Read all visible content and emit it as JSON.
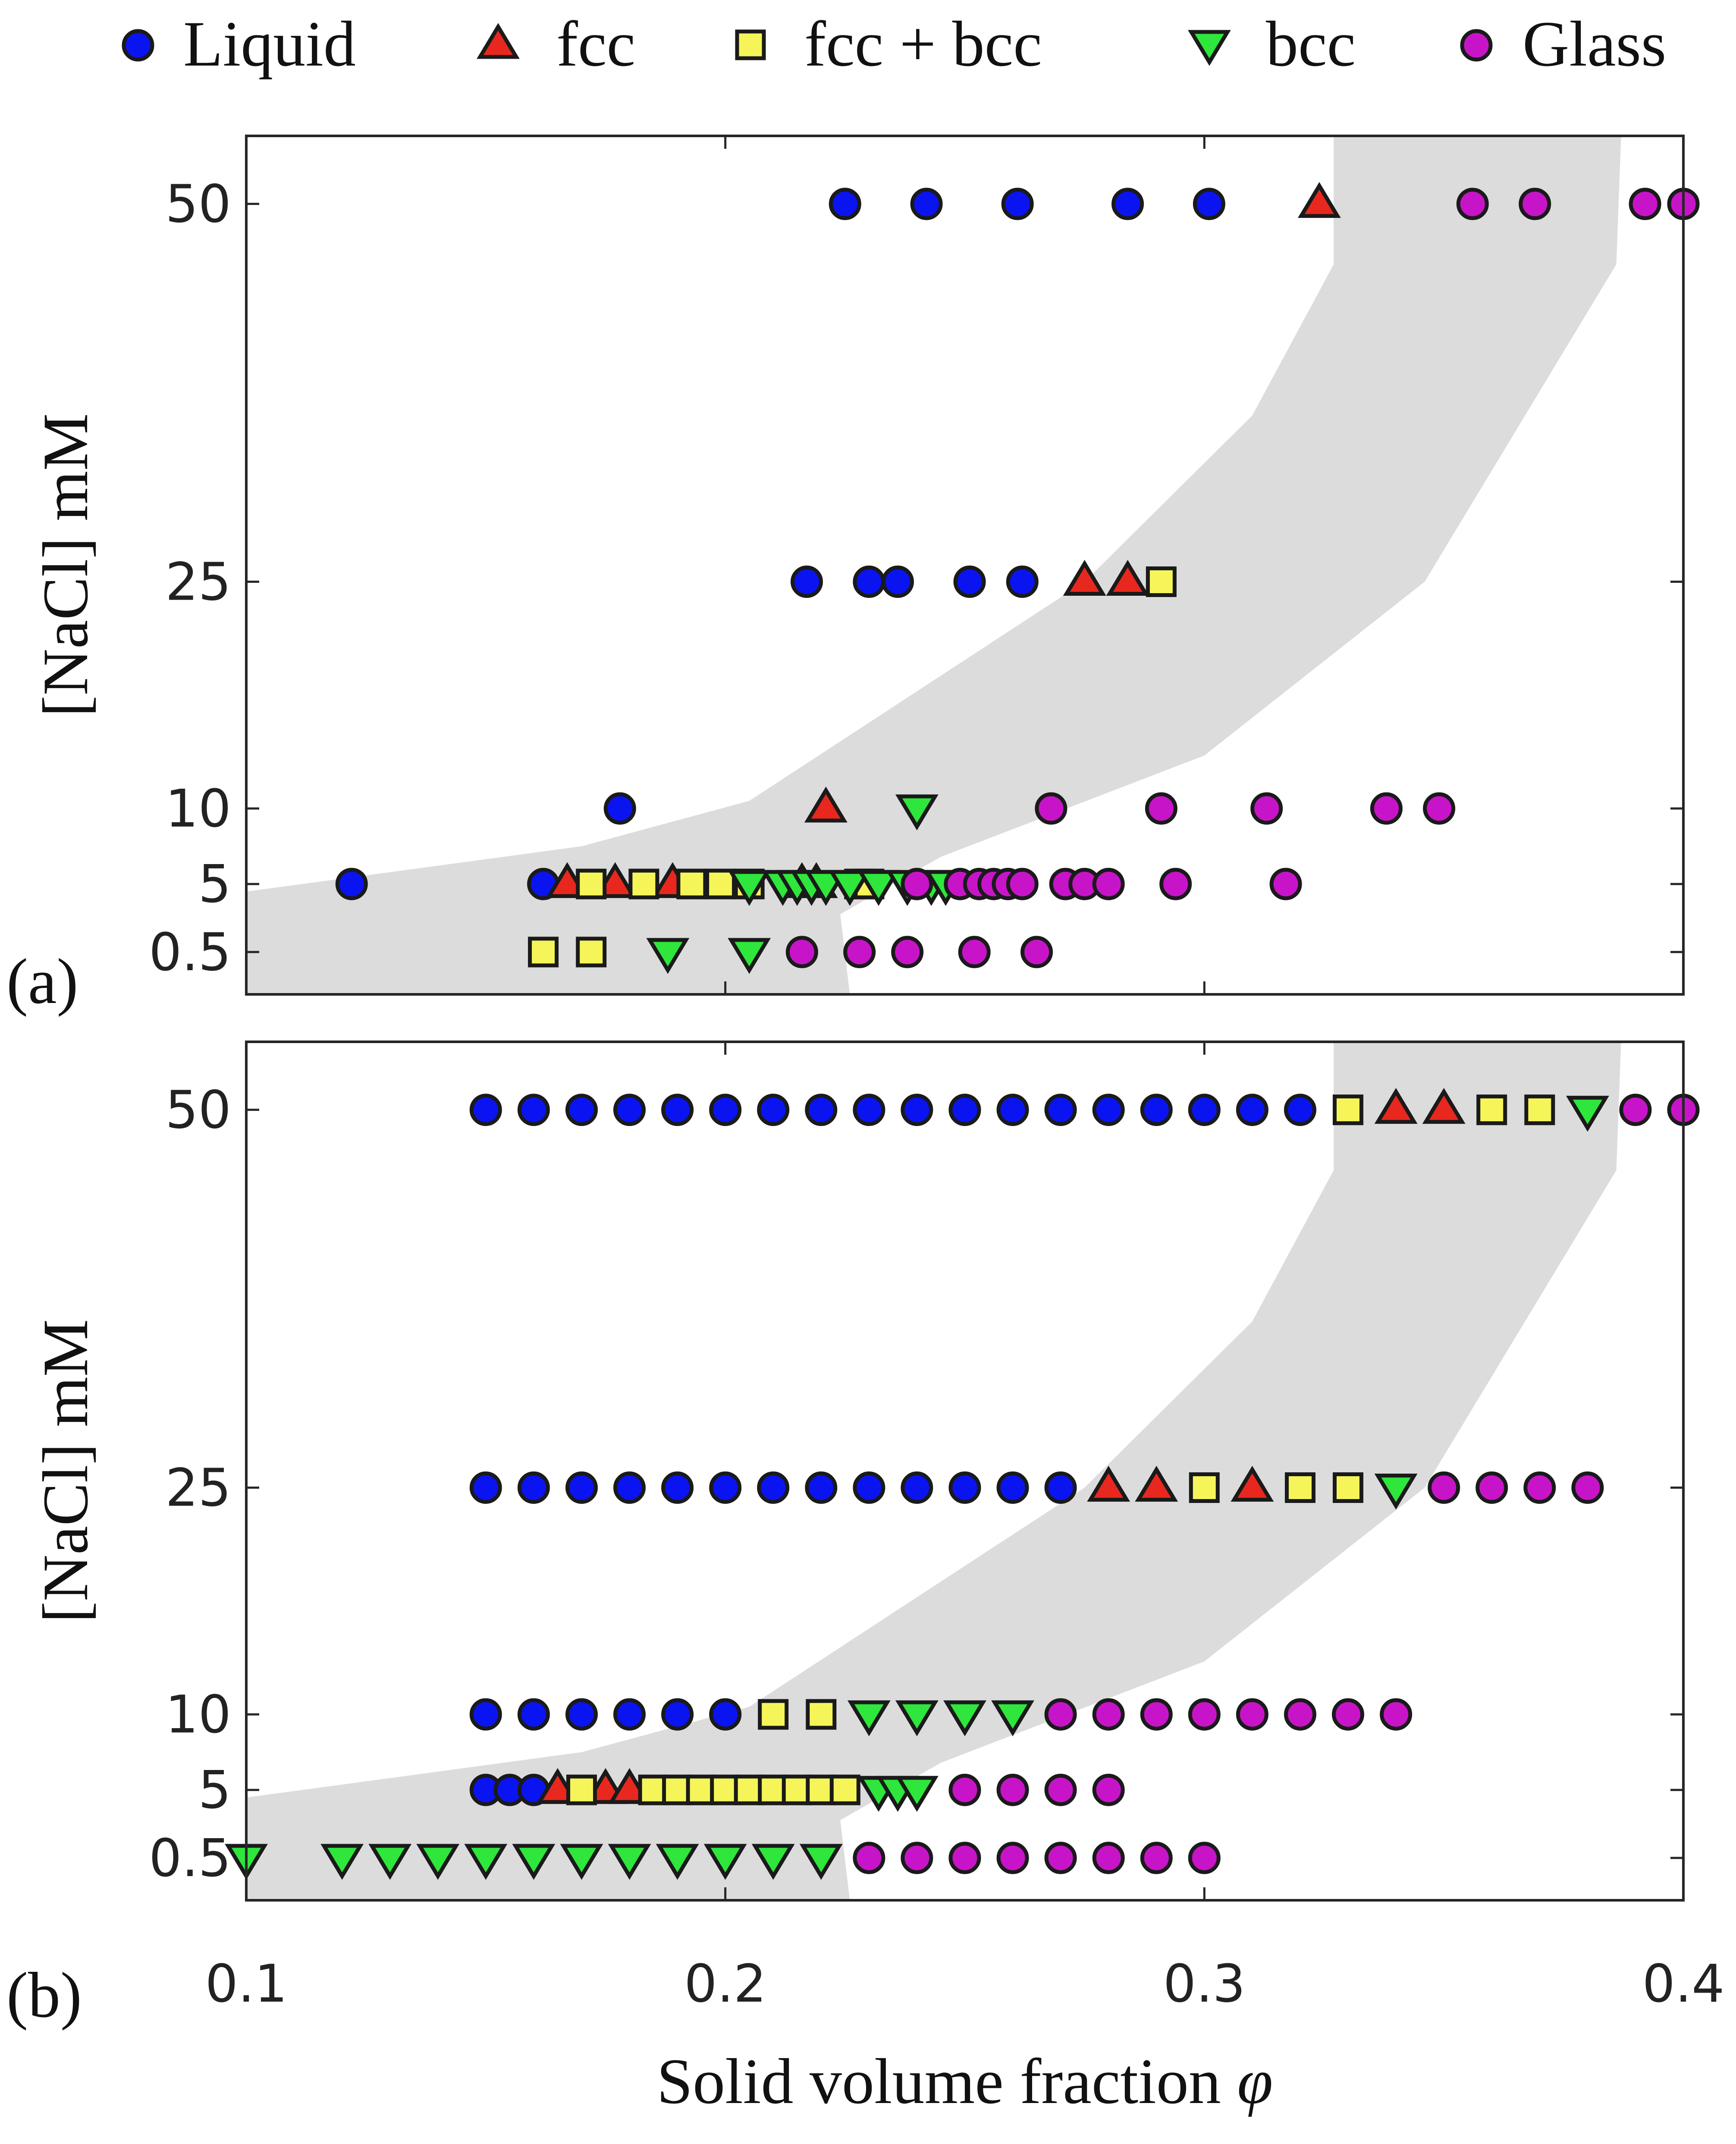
{
  "title": "",
  "legend": [
    {
      "key": "liquid",
      "label": "Liquid",
      "marker": "circle",
      "color": "#0a14f0"
    },
    {
      "key": "fcc",
      "label": "fcc",
      "marker": "triangle-up",
      "color": "#e8281e"
    },
    {
      "key": "mix",
      "label": "fcc + bcc",
      "marker": "square",
      "color": "#f5f55a"
    },
    {
      "key": "bcc",
      "label": "bcc",
      "marker": "triangle-down",
      "color": "#2ee63c"
    },
    {
      "key": "glass",
      "label": "Glass",
      "marker": "circle",
      "color": "#c814c8"
    }
  ],
  "xlabel_text": "Solid volume fraction ",
  "xlabel_symbol": "φ",
  "ylabel": "[NaCl] mM",
  "panel_a_label": "(a)",
  "panel_b_label": "(b)",
  "chart_data": [
    {
      "type": "scatter",
      "panel": "(a)",
      "xlabel": "Solid volume fraction φ",
      "ylabel": "[NaCl] mM",
      "xlim": [
        0.1,
        0.4
      ],
      "xticks": [
        0.1,
        0.2,
        0.3,
        0.4
      ],
      "xtick_labels": [
        "0.1",
        "0.2",
        "0.3",
        "0.4"
      ],
      "yticks": [
        0.5,
        5,
        10,
        25,
        50
      ],
      "ytick_labels": [
        "0.5",
        "5",
        "10",
        "25",
        "50"
      ],
      "shaded_region": [
        [
          0.1,
          -2.3
        ],
        [
          0.226,
          -2.3
        ],
        [
          0.224,
          3.0
        ],
        [
          0.245,
          6.8
        ],
        [
          0.3,
          13.5
        ],
        [
          0.346,
          25.0
        ],
        [
          0.386,
          46.0
        ],
        [
          0.387,
          54.5
        ],
        [
          0.327,
          54.5
        ],
        [
          0.327,
          46.0
        ],
        [
          0.31,
          36.0
        ],
        [
          0.275,
          25.0
        ],
        [
          0.205,
          10.5
        ],
        [
          0.17,
          7.5
        ],
        [
          0.1,
          4.5
        ]
      ],
      "series": [
        {
          "name": "Liquid",
          "points": [
            [
              0.225,
              50
            ],
            [
              0.242,
              50
            ],
            [
              0.261,
              50
            ],
            [
              0.284,
              50
            ],
            [
              0.301,
              50
            ],
            [
              0.217,
              25
            ],
            [
              0.23,
              25
            ],
            [
              0.236,
              25
            ],
            [
              0.251,
              25
            ],
            [
              0.262,
              25
            ],
            [
              0.178,
              10
            ],
            [
              0.122,
              5
            ],
            [
              0.162,
              5
            ]
          ]
        },
        {
          "name": "fcc",
          "points": [
            [
              0.324,
              50
            ],
            [
              0.275,
              25
            ],
            [
              0.284,
              25
            ],
            [
              0.221,
              10
            ],
            [
              0.167,
              5
            ],
            [
              0.177,
              5
            ],
            [
              0.189,
              5
            ],
            [
              0.216,
              5
            ],
            [
              0.219,
              5
            ]
          ]
        },
        {
          "name": "fcc + bcc",
          "points": [
            [
              0.291,
              25
            ],
            [
              0.172,
              5
            ],
            [
              0.183,
              5
            ],
            [
              0.193,
              5
            ],
            [
              0.199,
              5
            ],
            [
              0.205,
              5
            ],
            [
              0.228,
              5
            ],
            [
              0.23,
              5
            ],
            [
              0.162,
              0.5
            ],
            [
              0.172,
              0.5
            ]
          ]
        },
        {
          "name": "bcc",
          "points": [
            [
              0.24,
              10
            ],
            [
              0.205,
              5
            ],
            [
              0.212,
              5
            ],
            [
              0.215,
              5
            ],
            [
              0.218,
              5
            ],
            [
              0.221,
              5
            ],
            [
              0.226,
              5
            ],
            [
              0.232,
              5
            ],
            [
              0.238,
              5
            ],
            [
              0.243,
              5
            ],
            [
              0.246,
              5
            ],
            [
              0.188,
              0.5
            ],
            [
              0.205,
              0.5
            ]
          ]
        },
        {
          "name": "Glass",
          "points": [
            [
              0.356,
              50
            ],
            [
              0.369,
              50
            ],
            [
              0.392,
              50
            ],
            [
              0.4,
              50
            ],
            [
              0.268,
              10
            ],
            [
              0.291,
              10
            ],
            [
              0.313,
              10
            ],
            [
              0.338,
              10
            ],
            [
              0.349,
              10
            ],
            [
              0.24,
              5
            ],
            [
              0.249,
              5
            ],
            [
              0.253,
              5
            ],
            [
              0.256,
              5
            ],
            [
              0.259,
              5
            ],
            [
              0.262,
              5
            ],
            [
              0.271,
              5
            ],
            [
              0.275,
              5
            ],
            [
              0.28,
              5
            ],
            [
              0.294,
              5
            ],
            [
              0.317,
              5
            ],
            [
              0.216,
              0.5
            ],
            [
              0.228,
              0.5
            ],
            [
              0.238,
              0.5
            ],
            [
              0.252,
              0.5
            ],
            [
              0.265,
              0.5
            ]
          ]
        }
      ]
    },
    {
      "type": "scatter",
      "panel": "(b)",
      "xlabel": "Solid volume fraction φ",
      "ylabel": "[NaCl] mM",
      "xlim": [
        0.1,
        0.4
      ],
      "xticks": [
        0.1,
        0.2,
        0.3,
        0.4
      ],
      "xtick_labels": [
        "0.1",
        "0.2",
        "0.3",
        "0.4"
      ],
      "yticks": [
        0.5,
        5,
        10,
        25,
        50
      ],
      "ytick_labels": [
        "0.5",
        "5",
        "10",
        "25",
        "50"
      ],
      "shaded_region": [
        [
          0.1,
          -2.3
        ],
        [
          0.226,
          -2.3
        ],
        [
          0.224,
          3.0
        ],
        [
          0.245,
          6.8
        ],
        [
          0.3,
          13.5
        ],
        [
          0.346,
          25.0
        ],
        [
          0.386,
          46.0
        ],
        [
          0.387,
          54.5
        ],
        [
          0.327,
          54.5
        ],
        [
          0.327,
          46.0
        ],
        [
          0.31,
          36.0
        ],
        [
          0.275,
          25.0
        ],
        [
          0.205,
          10.5
        ],
        [
          0.17,
          7.5
        ],
        [
          0.1,
          4.5
        ]
      ],
      "series": [
        {
          "name": "Liquid",
          "points": [
            [
              0.15,
              50
            ],
            [
              0.16,
              50
            ],
            [
              0.17,
              50
            ],
            [
              0.18,
              50
            ],
            [
              0.19,
              50
            ],
            [
              0.2,
              50
            ],
            [
              0.21,
              50
            ],
            [
              0.22,
              50
            ],
            [
              0.23,
              50
            ],
            [
              0.24,
              50
            ],
            [
              0.25,
              50
            ],
            [
              0.26,
              50
            ],
            [
              0.27,
              50
            ],
            [
              0.28,
              50
            ],
            [
              0.29,
              50
            ],
            [
              0.3,
              50
            ],
            [
              0.31,
              50
            ],
            [
              0.32,
              50
            ],
            [
              0.15,
              25
            ],
            [
              0.16,
              25
            ],
            [
              0.17,
              25
            ],
            [
              0.18,
              25
            ],
            [
              0.19,
              25
            ],
            [
              0.2,
              25
            ],
            [
              0.21,
              25
            ],
            [
              0.22,
              25
            ],
            [
              0.23,
              25
            ],
            [
              0.24,
              25
            ],
            [
              0.25,
              25
            ],
            [
              0.26,
              25
            ],
            [
              0.27,
              25
            ],
            [
              0.15,
              10
            ],
            [
              0.16,
              10
            ],
            [
              0.17,
              10
            ],
            [
              0.18,
              10
            ],
            [
              0.19,
              10
            ],
            [
              0.2,
              10
            ],
            [
              0.15,
              5
            ],
            [
              0.155,
              5
            ],
            [
              0.16,
              5
            ]
          ]
        },
        {
          "name": "fcc",
          "points": [
            [
              0.34,
              50
            ],
            [
              0.35,
              50
            ],
            [
              0.28,
              25
            ],
            [
              0.29,
              25
            ],
            [
              0.31,
              25
            ],
            [
              0.165,
              5
            ],
            [
              0.175,
              5
            ],
            [
              0.18,
              5
            ]
          ]
        },
        {
          "name": "fcc + bcc",
          "points": [
            [
              0.33,
              50
            ],
            [
              0.36,
              50
            ],
            [
              0.37,
              50
            ],
            [
              0.3,
              25
            ],
            [
              0.32,
              25
            ],
            [
              0.33,
              25
            ],
            [
              0.21,
              10
            ],
            [
              0.22,
              10
            ],
            [
              0.17,
              5
            ],
            [
              0.185,
              5
            ],
            [
              0.19,
              5
            ],
            [
              0.195,
              5
            ],
            [
              0.2,
              5
            ],
            [
              0.205,
              5
            ],
            [
              0.21,
              5
            ],
            [
              0.215,
              5
            ],
            [
              0.22,
              5
            ],
            [
              0.225,
              5
            ]
          ]
        },
        {
          "name": "bcc",
          "points": [
            [
              0.38,
              50
            ],
            [
              0.34,
              25
            ],
            [
              0.23,
              10
            ],
            [
              0.24,
              10
            ],
            [
              0.25,
              10
            ],
            [
              0.26,
              10
            ],
            [
              0.232,
              5
            ],
            [
              0.236,
              5
            ],
            [
              0.24,
              5
            ],
            [
              0.1,
              0.5
            ],
            [
              0.12,
              0.5
            ],
            [
              0.13,
              0.5
            ],
            [
              0.14,
              0.5
            ],
            [
              0.15,
              0.5
            ],
            [
              0.16,
              0.5
            ],
            [
              0.17,
              0.5
            ],
            [
              0.18,
              0.5
            ],
            [
              0.19,
              0.5
            ],
            [
              0.2,
              0.5
            ],
            [
              0.21,
              0.5
            ],
            [
              0.22,
              0.5
            ]
          ]
        },
        {
          "name": "Glass",
          "points": [
            [
              0.39,
              50
            ],
            [
              0.4,
              50
            ],
            [
              0.35,
              25
            ],
            [
              0.36,
              25
            ],
            [
              0.37,
              25
            ],
            [
              0.38,
              25
            ],
            [
              0.27,
              10
            ],
            [
              0.28,
              10
            ],
            [
              0.29,
              10
            ],
            [
              0.3,
              10
            ],
            [
              0.31,
              10
            ],
            [
              0.32,
              10
            ],
            [
              0.33,
              10
            ],
            [
              0.34,
              10
            ],
            [
              0.25,
              5
            ],
            [
              0.26,
              5
            ],
            [
              0.27,
              5
            ],
            [
              0.28,
              5
            ],
            [
              0.23,
              0.5
            ],
            [
              0.24,
              0.5
            ],
            [
              0.25,
              0.5
            ],
            [
              0.26,
              0.5
            ],
            [
              0.27,
              0.5
            ],
            [
              0.28,
              0.5
            ],
            [
              0.29,
              0.5
            ],
            [
              0.3,
              0.5
            ]
          ]
        }
      ]
    }
  ]
}
